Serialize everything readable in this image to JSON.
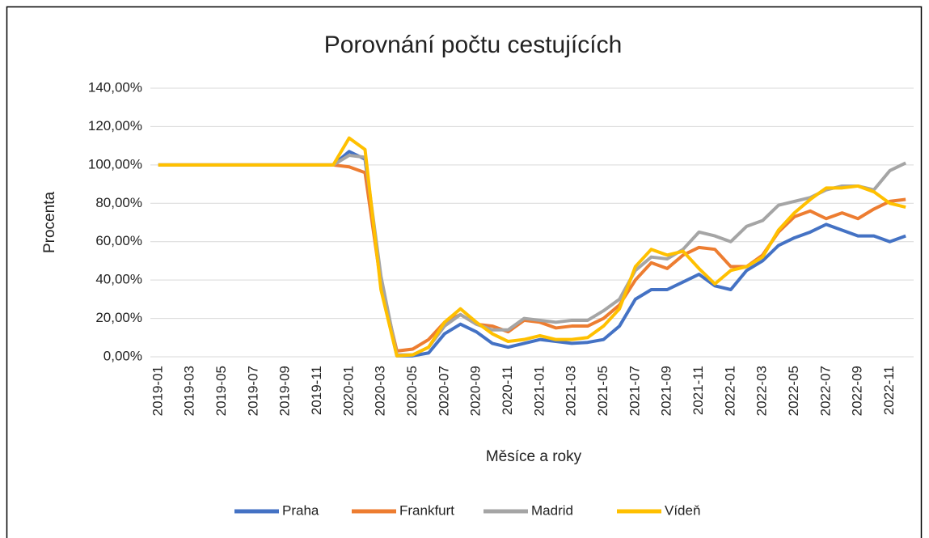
{
  "chart_data": {
    "type": "line",
    "title": "Porovnání počtu cestujících",
    "x_label": "Měsíce a roky",
    "y_label": "Procenta",
    "categories": [
      "2019-01",
      null,
      "2019-03",
      null,
      "2019-05",
      null,
      "2019-07",
      null,
      "2019-09",
      null,
      "2019-11",
      null,
      "2020-01",
      null,
      "2020-03",
      null,
      "2020-05",
      null,
      "2020-07",
      null,
      "2020-09",
      null,
      "2020-11",
      null,
      "2021-01",
      null,
      "2021-03",
      null,
      "2021-05",
      null,
      "2021-07",
      null,
      "2021-09",
      null,
      "2021-11",
      null,
      "2022-01",
      null,
      "2022-03",
      null,
      "2022-05",
      null,
      "2022-07",
      null,
      "2022-09",
      null,
      "2022-11",
      null
    ],
    "series": [
      {
        "name": "Praha",
        "color": "#4472c4",
        "values": [
          100,
          100,
          100,
          100,
          100,
          100,
          100,
          100,
          100,
          100,
          100,
          100,
          107,
          103,
          37,
          0.5,
          0.5,
          2,
          12,
          17,
          13,
          7,
          5,
          7,
          9,
          8,
          7,
          7.5,
          9,
          16,
          30,
          35,
          35,
          39,
          43,
          37,
          35,
          45,
          50,
          58,
          62,
          65,
          69,
          66,
          63,
          63,
          60,
          63
        ]
      },
      {
        "name": "Frankfurt",
        "color": "#ed7d31",
        "values": [
          100,
          100,
          100,
          100,
          100,
          100,
          100,
          100,
          100,
          100,
          100,
          100,
          99,
          96,
          38,
          3,
          4,
          9,
          18,
          22,
          17,
          16,
          13,
          19,
          18,
          15,
          16,
          16,
          20,
          27,
          40,
          49,
          46,
          53,
          57,
          56,
          47,
          47,
          53,
          65,
          73,
          76,
          72,
          75,
          72,
          77,
          81,
          82
        ]
      },
      {
        "name": "Madrid",
        "color": "#a5a5a5",
        "values": [
          100,
          100,
          100,
          100,
          100,
          100,
          100,
          100,
          100,
          100,
          100,
          100,
          105,
          104,
          42,
          1,
          1,
          5,
          16,
          22,
          17,
          14,
          14,
          20,
          19,
          18,
          19,
          19,
          24,
          30,
          45,
          52,
          51,
          56,
          65,
          63,
          60,
          68,
          71,
          79,
          81,
          83,
          87,
          89,
          89,
          87,
          97,
          101
        ]
      },
      {
        "name": "Vídeň",
        "color": "#ffc000",
        "values": [
          100,
          100,
          100,
          100,
          100,
          100,
          100,
          100,
          100,
          100,
          100,
          100,
          114,
          108,
          35,
          0.5,
          1,
          5,
          18,
          25,
          18,
          12,
          8,
          9,
          11,
          9,
          9,
          10,
          16,
          25,
          47,
          56,
          53,
          55,
          46,
          38,
          45,
          47,
          52,
          66,
          75,
          82,
          88,
          88,
          89,
          86,
          80,
          78
        ]
      }
    ],
    "ylim": [
      0,
      140
    ],
    "yticks": [
      {
        "value": 0,
        "label": "0,00%"
      },
      {
        "value": 20,
        "label": "20,00%"
      },
      {
        "value": 40,
        "label": "40,00%"
      },
      {
        "value": 60,
        "label": "60,00%"
      },
      {
        "value": 80,
        "label": "80,00%"
      },
      {
        "value": 100,
        "label": "100,00%"
      },
      {
        "value": 120,
        "label": "120,00%"
      },
      {
        "value": 140,
        "label": "140,00%"
      }
    ],
    "grid": true,
    "legend": "bottom"
  }
}
